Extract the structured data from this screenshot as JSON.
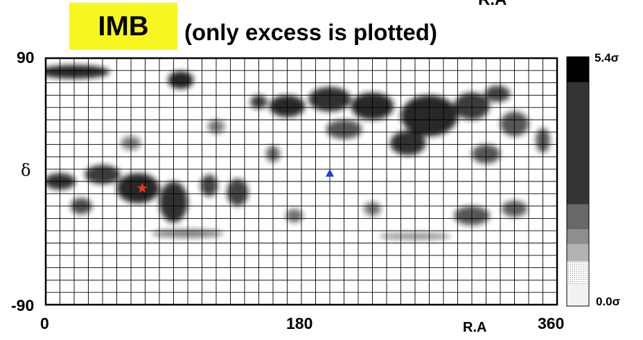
{
  "header": {
    "top_fragment": "R.A",
    "badge_label": "IMB",
    "subtitle": "(only excess is plotted)"
  },
  "colors": {
    "badge_background": "#f7f71f",
    "map_ink": "#1a1a1a",
    "star_marker": "#e8361c",
    "triangle_marker": "#1f3fe0"
  },
  "chart_data": {
    "type": "heatmap",
    "title": "(only excess is plotted)",
    "xlabel": "R.A",
    "ylabel": "δ",
    "xlim": [
      0,
      360
    ],
    "ylim": [
      -90,
      90
    ],
    "x_tick_labels": [
      "0",
      "180",
      "360"
    ],
    "y_tick_labels": [
      "90",
      "-90"
    ],
    "grid": true,
    "colorbar": {
      "min_label": "0.0σ",
      "max_label": "5.4σ",
      "min": 0.0,
      "max": 5.4,
      "levels": [
        0.3,
        0.9,
        1.6,
        2.4,
        3.2,
        4.3,
        5.4
      ]
    },
    "excess_regions": [
      {
        "ra": 20,
        "dec": 80,
        "ra_width": 50,
        "dec_height": 10,
        "sigma": 5.0
      },
      {
        "ra": 95,
        "dec": 74,
        "ra_width": 18,
        "dec_height": 13,
        "sigma": 5.2
      },
      {
        "ra": 150,
        "dec": 58,
        "ra_width": 12,
        "dec_height": 10,
        "sigma": 4.6
      },
      {
        "ra": 170,
        "dec": 55,
        "ra_width": 25,
        "dec_height": 16,
        "sigma": 5.0
      },
      {
        "ra": 200,
        "dec": 60,
        "ra_width": 30,
        "dec_height": 18,
        "sigma": 4.8
      },
      {
        "ra": 230,
        "dec": 55,
        "ra_width": 30,
        "dec_height": 20,
        "sigma": 5.0
      },
      {
        "ra": 270,
        "dec": 48,
        "ra_width": 40,
        "dec_height": 30,
        "sigma": 5.0
      },
      {
        "ra": 300,
        "dec": 55,
        "ra_width": 25,
        "dec_height": 20,
        "sigma": 4.6
      },
      {
        "ra": 318,
        "dec": 64,
        "ra_width": 18,
        "dec_height": 12,
        "sigma": 4.4
      },
      {
        "ra": 330,
        "dec": 42,
        "ra_width": 20,
        "dec_height": 18,
        "sigma": 4.0
      },
      {
        "ra": 255,
        "dec": 28,
        "ra_width": 25,
        "dec_height": 18,
        "sigma": 4.8
      },
      {
        "ra": 210,
        "dec": 38,
        "ra_width": 25,
        "dec_height": 14,
        "sigma": 4.0
      },
      {
        "ra": 10,
        "dec": 0,
        "ra_width": 22,
        "dec_height": 12,
        "sigma": 4.8
      },
      {
        "ra": 40,
        "dec": 5,
        "ra_width": 25,
        "dec_height": 14,
        "sigma": 4.6
      },
      {
        "ra": 65,
        "dec": -5,
        "ra_width": 30,
        "dec_height": 22,
        "sigma": 5.0
      },
      {
        "ra": 90,
        "dec": -15,
        "ra_width": 20,
        "dec_height": 30,
        "sigma": 4.8
      },
      {
        "ra": 115,
        "dec": -3,
        "ra_width": 12,
        "dec_height": 16,
        "sigma": 4.4
      },
      {
        "ra": 135,
        "dec": -8,
        "ra_width": 15,
        "dec_height": 20,
        "sigma": 4.4
      },
      {
        "ra": 25,
        "dec": -18,
        "ra_width": 15,
        "dec_height": 12,
        "sigma": 4.2
      },
      {
        "ra": 310,
        "dec": 20,
        "ra_width": 20,
        "dec_height": 14,
        "sigma": 4.0
      },
      {
        "ra": 300,
        "dec": -25,
        "ra_width": 25,
        "dec_height": 14,
        "sigma": 4.0
      },
      {
        "ra": 330,
        "dec": -20,
        "ra_width": 18,
        "dec_height": 12,
        "sigma": 3.8
      },
      {
        "ra": 350,
        "dec": 30,
        "ra_width": 10,
        "dec_height": 18,
        "sigma": 4.0
      },
      {
        "ra": 160,
        "dec": 20,
        "ra_width": 10,
        "dec_height": 12,
        "sigma": 3.6
      },
      {
        "ra": 175,
        "dec": -25,
        "ra_width": 12,
        "dec_height": 10,
        "sigma": 3.4
      },
      {
        "ra": 230,
        "dec": -20,
        "ra_width": 12,
        "dec_height": 10,
        "sigma": 3.2
      },
      {
        "ra": 120,
        "dec": 40,
        "ra_width": 12,
        "dec_height": 10,
        "sigma": 3.0
      },
      {
        "ra": 60,
        "dec": 28,
        "ra_width": 14,
        "dec_height": 10,
        "sigma": 3.0
      },
      {
        "ra": 100,
        "dec": -38,
        "ra_width": 50,
        "dec_height": 6,
        "sigma": 3.0
      },
      {
        "ra": 260,
        "dec": -40,
        "ra_width": 50,
        "dec_height": 5,
        "sigma": 2.6
      }
    ],
    "markers": [
      {
        "name": "star",
        "ra": 68,
        "dec": -5
      },
      {
        "name": "triangle",
        "ra": 200,
        "dec": 6
      }
    ]
  }
}
